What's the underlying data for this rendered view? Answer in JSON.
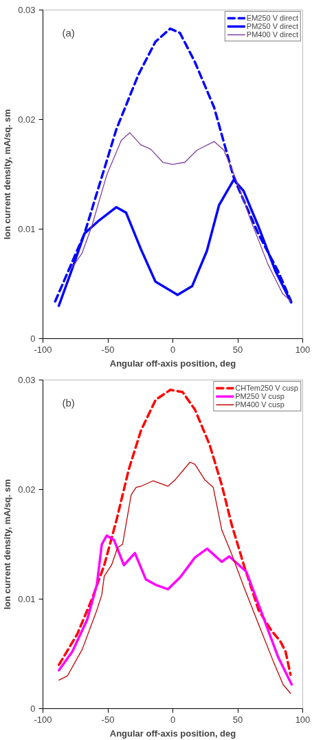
{
  "chart_data": [
    {
      "type": "line",
      "xlabel": "Angular off-axis position, deg",
      "ylabel": "Ion current density, mA/sq. sm",
      "annotations": [
        "(a)"
      ],
      "xlim": [
        -100,
        100
      ],
      "ylim": [
        0,
        0.03
      ],
      "xticks": [
        -100,
        -50,
        0,
        50,
        100
      ],
      "yticks": [
        0,
        0.01,
        0.02,
        0.03
      ],
      "grid": false,
      "legend": "top right",
      "series": [
        {
          "name": "EM250 V direct",
          "color": "#0000ff",
          "line_style": "dashed",
          "x": [
            -90.6,
            -68,
            -43.5,
            -26.5,
            -13.4,
            -2,
            5.5,
            16.8,
            31.8,
            46.9,
            65.7,
            80.8,
            91.1
          ],
          "values": [
            0.0034,
            0.0096,
            0.0191,
            0.0241,
            0.0271,
            0.0283,
            0.0279,
            0.0253,
            0.0211,
            0.0147,
            0.0096,
            0.0062,
            0.0034
          ]
        },
        {
          "name": "PM250 V direct",
          "color": "#0000ff",
          "line_style": "solid",
          "x": [
            -87.8,
            -77.4,
            -68,
            -56.7,
            -43.5,
            -36,
            -24.7,
            -13.4,
            3.6,
            14.9,
            26.2,
            35.6,
            46.9,
            54.4,
            65.7,
            78.9,
            91.1
          ],
          "values": [
            0.003,
            0.0064,
            0.0096,
            0.0108,
            0.012,
            0.0115,
            0.0082,
            0.0052,
            0.004,
            0.0048,
            0.008,
            0.0122,
            0.0145,
            0.0135,
            0.0103,
            0.0062,
            0.0033
          ]
        },
        {
          "name": "PM400 V direct",
          "color": "#7f3f9f",
          "line_style": "solid",
          "x": [
            -77.4,
            -69.9,
            -62.3,
            -51,
            -39.7,
            -33.1,
            -24.7,
            -17.1,
            -7.7,
            -0.2,
            9.2,
            18.6,
            31.8,
            39.3,
            48.8,
            60,
            73.2,
            84.5,
            91.1
          ],
          "values": [
            0.0065,
            0.0078,
            0.0103,
            0.0149,
            0.0181,
            0.0188,
            0.0177,
            0.0173,
            0.0161,
            0.0159,
            0.0161,
            0.0172,
            0.018,
            0.0172,
            0.0145,
            0.0108,
            0.0068,
            0.0041,
            0.0034
          ]
        }
      ]
    },
    {
      "type": "line",
      "xlabel": "Angular off-axis position, deg",
      "ylabel": "Ion current density, mA/sq. sm",
      "annotations": [
        "(b)"
      ],
      "xlim": [
        -100,
        100
      ],
      "ylim": [
        0,
        0.03
      ],
      "xticks": [
        -100,
        -50,
        0,
        50,
        100
      ],
      "yticks": [
        0,
        0.01,
        0.02,
        0.03
      ],
      "grid": false,
      "legend": "top right",
      "series": [
        {
          "name": "CHTem250 V cusp",
          "color": "#ff0000",
          "line_style": "dashed",
          "x": [
            -87.7,
            -73.6,
            -62.3,
            -52.8,
            -43.4,
            -34,
            -24.5,
            -13.2,
            -1.9,
            7.5,
            17,
            28.3,
            37.7,
            45.3,
            54.7,
            66,
            75.5,
            83,
            86.8,
            90.6
          ],
          "values": [
            0.004,
            0.0068,
            0.01,
            0.0131,
            0.0172,
            0.0218,
            0.0254,
            0.0282,
            0.0291,
            0.0289,
            0.0273,
            0.0241,
            0.0204,
            0.0168,
            0.0131,
            0.009,
            0.0072,
            0.0061,
            0.0052,
            0.0031
          ]
        },
        {
          "name": "PM250 V cusp",
          "color": "#ff00ff",
          "line_style": "solid",
          "x": [
            -87.7,
            -77.4,
            -66,
            -58.5,
            -54.7,
            -50.9,
            -45.3,
            -37.7,
            -29.2,
            -20.8,
            -13.2,
            -3.8,
            5.7,
            17,
            26.4,
            37.7,
            43.4,
            56.6,
            66,
            81.1,
            91.5
          ],
          "values": [
            0.0035,
            0.0052,
            0.0081,
            0.0113,
            0.015,
            0.0158,
            0.0154,
            0.0131,
            0.0142,
            0.0118,
            0.0113,
            0.0109,
            0.012,
            0.0138,
            0.0146,
            0.0134,
            0.0139,
            0.0125,
            0.0095,
            0.0047,
            0.0022
          ]
        },
        {
          "name": "PM400 V cusp",
          "color": "#c00000",
          "line_style": "solid",
          "x": [
            -87.7,
            -81.1,
            -69.8,
            -58.5,
            -54.7,
            -52.8,
            -47.2,
            -42.5,
            -38.7,
            -32.1,
            -28.3,
            -24.5,
            -15.1,
            -3.8,
            1.9,
            13.2,
            17,
            24.5,
            31.1,
            37.7,
            45.3,
            54.7,
            66,
            77.4,
            84.9,
            90.6
          ],
          "values": [
            0.0026,
            0.003,
            0.0054,
            0.009,
            0.0104,
            0.0121,
            0.0131,
            0.0147,
            0.015,
            0.0195,
            0.0202,
            0.0203,
            0.0208,
            0.0203,
            0.0209,
            0.0225,
            0.0223,
            0.0209,
            0.0202,
            0.0163,
            0.0141,
            0.0111,
            0.0077,
            0.0043,
            0.0022,
            0.0014
          ]
        }
      ]
    }
  ]
}
